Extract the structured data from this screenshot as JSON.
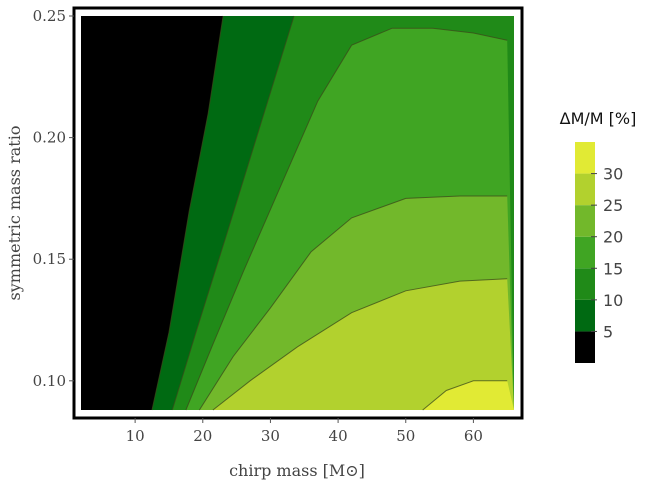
{
  "chart_data": {
    "type": "contour",
    "xlabel": "chirp mass [M⊙]",
    "ylabel": "symmetric mass ratio",
    "xlim": [
      2,
      66
    ],
    "ylim": [
      0.088,
      0.25
    ],
    "x_ticks": [
      10,
      20,
      30,
      40,
      50,
      60
    ],
    "y_ticks": [
      0.1,
      0.15,
      0.2,
      0.25
    ],
    "y_tick_labels": [
      "0.10",
      "0.15",
      "0.20",
      "0.25"
    ],
    "colorbar": {
      "title": "ΔM/M [%]",
      "tick_values": [
        5,
        10,
        15,
        20,
        25,
        30
      ],
      "levels": [
        0,
        5,
        10,
        15,
        20,
        25,
        30,
        35
      ],
      "colors": [
        "#000000",
        "#006a12",
        "#208a18",
        "#40a523",
        "#72b82b",
        "#b2d12e",
        "#e1ea34",
        "#fcfc3a"
      ]
    },
    "contours": [
      {
        "level": 5,
        "points": [
          [
            12.5,
            0.088
          ],
          [
            15,
            0.12
          ],
          [
            18,
            0.17
          ],
          [
            20.8,
            0.21
          ],
          [
            23,
            0.25
          ]
        ]
      },
      {
        "level": 10,
        "points": [
          [
            15.5,
            0.088
          ],
          [
            19,
            0.12
          ],
          [
            23.5,
            0.16
          ],
          [
            28.5,
            0.205
          ],
          [
            33.5,
            0.25
          ]
        ]
      },
      {
        "level": 15,
        "points": [
          [
            17.5,
            0.088
          ],
          [
            21.5,
            0.115
          ],
          [
            26,
            0.145
          ],
          [
            31.5,
            0.18
          ],
          [
            37,
            0.215
          ],
          [
            42,
            0.238
          ],
          [
            48,
            0.245
          ],
          [
            54,
            0.245
          ],
          [
            60,
            0.243
          ],
          [
            65,
            0.24
          ]
        ]
      },
      {
        "level": 20,
        "points": [
          [
            19.5,
            0.088
          ],
          [
            24.5,
            0.11
          ],
          [
            30,
            0.13
          ],
          [
            36,
            0.153
          ],
          [
            42,
            0.167
          ],
          [
            50,
            0.175
          ],
          [
            58,
            0.176
          ],
          [
            65,
            0.176
          ]
        ]
      },
      {
        "level": 25,
        "points": [
          [
            21.5,
            0.088
          ],
          [
            27,
            0.1
          ],
          [
            34,
            0.114
          ],
          [
            42,
            0.128
          ],
          [
            50,
            0.137
          ],
          [
            58,
            0.141
          ],
          [
            65,
            0.142
          ]
        ]
      },
      {
        "level": 30,
        "points": [
          [
            52.5,
            0.088
          ],
          [
            56,
            0.096
          ],
          [
            60,
            0.1
          ],
          [
            65,
            0.1
          ]
        ]
      }
    ]
  }
}
